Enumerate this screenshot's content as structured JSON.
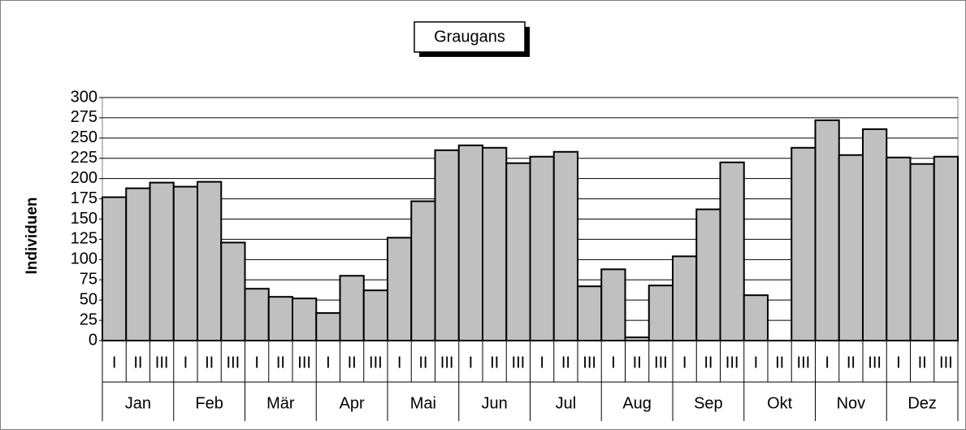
{
  "chart_data": {
    "type": "bar",
    "title": "Graugans",
    "y_label": "Individuen",
    "categories": [
      "I",
      "II",
      "III",
      "I",
      "II",
      "III",
      "I",
      "II",
      "III",
      "I",
      "II",
      "III",
      "I",
      "II",
      "III",
      "I",
      "II",
      "III",
      "I",
      "II",
      "III",
      "I",
      "II",
      "III",
      "I",
      "II",
      "III",
      "I",
      "II",
      "III",
      "I",
      "II",
      "III",
      "I",
      "II",
      "III"
    ],
    "groups": [
      "Jan",
      "Feb",
      "Mär",
      "Apr",
      "Mai",
      "Jun",
      "Jul",
      "Aug",
      "Sep",
      "Okt",
      "Nov",
      "Dez"
    ],
    "values": [
      177,
      188,
      195,
      190,
      196,
      121,
      64,
      54,
      52,
      34,
      80,
      62,
      127,
      172,
      235,
      241,
      238,
      219,
      227,
      233,
      67,
      88,
      4,
      68,
      104,
      162,
      220,
      56,
      0,
      238,
      272,
      229,
      261,
      226,
      218,
      227
    ],
    "color": "#c0c0c0",
    "ylim": [
      0,
      300
    ],
    "yticks": [
      0,
      25,
      50,
      75,
      100,
      125,
      150,
      175,
      200,
      225,
      250,
      275,
      300
    ],
    "grid": true
  }
}
